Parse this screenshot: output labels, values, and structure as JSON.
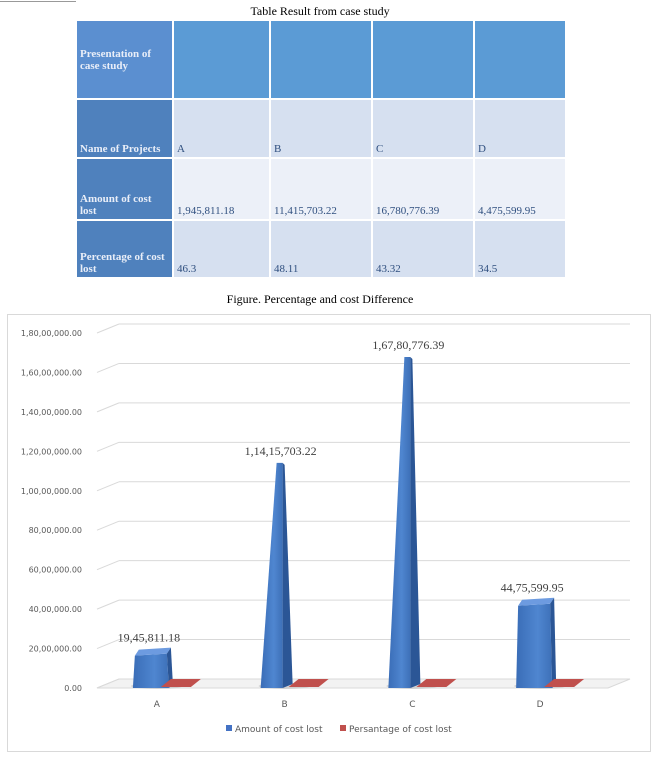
{
  "table": {
    "title": "Table Result from case study",
    "header_label": "Presentation of case study",
    "rows": [
      {
        "label": "Name of Projects",
        "cells": [
          "A",
          "B",
          "C",
          "D"
        ]
      },
      {
        "label": "Amount of cost lost",
        "cells": [
          "1,945,811.18",
          "11,415,703.22",
          "16,780,776.39",
          "4,475,599.95"
        ]
      },
      {
        "label": "Percentage of cost lost",
        "cells": [
          "46.3",
          "48.11",
          "43.32",
          "34.5"
        ]
      }
    ]
  },
  "figure_title": "Figure. Percentage and cost Difference",
  "colors": {
    "amount": "#4472c4",
    "percentage": "#c0504d",
    "header": "#5b9bd5"
  },
  "chart_data": {
    "type": "bar",
    "style": "3d-pyramid",
    "categories": [
      "A",
      "B",
      "C",
      "D"
    ],
    "series": [
      {
        "name": "Amount of cost lost",
        "values": [
          1945811.18,
          11415703.22,
          16780776.39,
          4475599.95
        ]
      },
      {
        "name": "Persantage of cost lost",
        "values": [
          46.3,
          48.11,
          43.32,
          34.5
        ]
      }
    ],
    "data_labels": [
      "19,45,811.18",
      "1,14,15,703.22",
      "1,67,80,776.39",
      "44,75,599.95"
    ],
    "yticks": [
      "0.00",
      "20,00,000.00",
      "40,00,000.00",
      "60,00,000.00",
      "80,00,000.00",
      "1,00,00,000.00",
      "1,20,00,000.00",
      "1,40,00,000.00",
      "1,60,00,000.00",
      "1,80,00,000.00"
    ],
    "ylim": [
      0,
      18000000
    ],
    "grid": true,
    "legend_position": "bottom"
  }
}
